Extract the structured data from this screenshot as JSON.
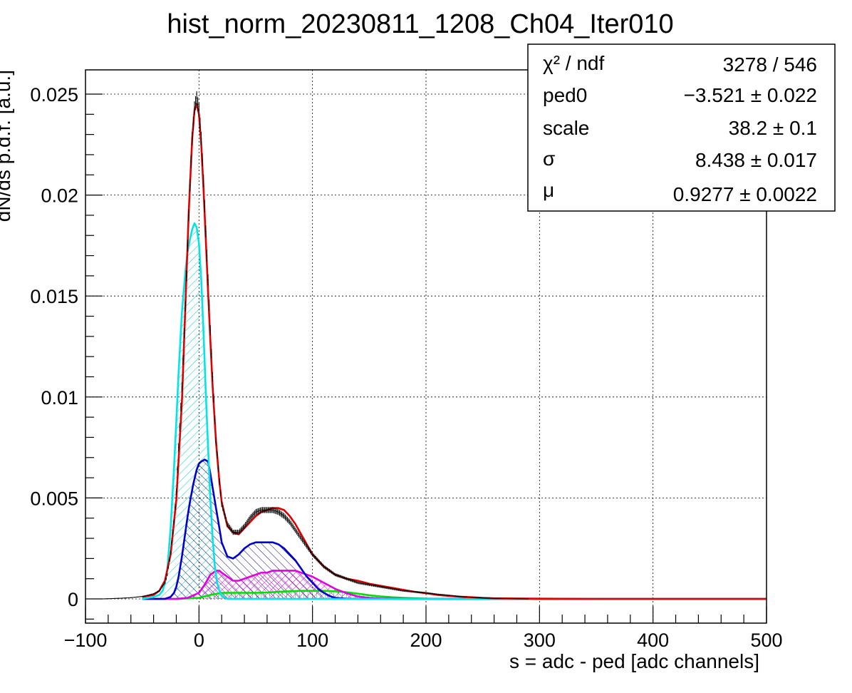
{
  "chart_data": {
    "type": "line",
    "title": "hist_norm_20230811_1208_Ch04_Iter010",
    "xlabel": "s = adc - ped [adc channels]",
    "ylabel": "dN/ds p.d.f. [a.u.]",
    "xlim": [
      -100,
      500
    ],
    "ylim": [
      -0.0012,
      0.0262
    ],
    "grid": true,
    "x_ticks": [
      -100,
      0,
      100,
      200,
      300,
      400,
      500
    ],
    "x_tick_labels": [
      "−100",
      "0",
      "100",
      "200",
      "300",
      "400",
      "500"
    ],
    "y_ticks": [
      0,
      0.005,
      0.01,
      0.015,
      0.02,
      0.025
    ],
    "y_tick_labels": [
      "0",
      "0.005",
      "0.01",
      "0.015",
      "0.02",
      "0.025"
    ],
    "colors": {
      "data": "#000000",
      "total_fit": "#e00000",
      "pedestal": "#00e5e5",
      "pe1": "#0000cc",
      "pe2": "#e000e0",
      "pe3": "#00dd00"
    },
    "series": [
      {
        "key": "data",
        "style": "histogram-points",
        "x": [
          -85,
          -70,
          -60,
          -50,
          -45,
          -40,
          -35,
          -30,
          -28,
          -25,
          -22,
          -20,
          -18,
          -15,
          -12,
          -10,
          -8,
          -6,
          -4,
          -2,
          0,
          2,
          4,
          6,
          8,
          10,
          12,
          15,
          18,
          20,
          25,
          30,
          35,
          40,
          45,
          50,
          55,
          60,
          65,
          70,
          75,
          80,
          85,
          90,
          95,
          100,
          110,
          120,
          130,
          140,
          150,
          160,
          170,
          180,
          190,
          200,
          210,
          220,
          230,
          240,
          250,
          260,
          270,
          280,
          290
        ],
        "y": [
          0,
          3e-05,
          6e-05,
          0.00012,
          0.00018,
          0.00025,
          0.0004,
          0.0008,
          0.0012,
          0.0023,
          0.0038,
          0.0053,
          0.0075,
          0.0105,
          0.0145,
          0.0175,
          0.0205,
          0.0228,
          0.0243,
          0.0248,
          0.0242,
          0.0228,
          0.0207,
          0.0182,
          0.0158,
          0.0133,
          0.011,
          0.0078,
          0.0058,
          0.0047,
          0.0037,
          0.0033,
          0.0033,
          0.0036,
          0.004,
          0.0043,
          0.0044,
          0.0044,
          0.0044,
          0.0043,
          0.0041,
          0.0038,
          0.0034,
          0.003,
          0.0026,
          0.0022,
          0.0016,
          0.0012,
          0.001,
          0.0008,
          0.0007,
          0.0006,
          0.0005,
          0.0004,
          0.00035,
          0.0003,
          0.00023,
          0.00018,
          0.00012,
          8e-05,
          5e-05,
          3e-05,
          2e-05,
          1e-05,
          0
        ]
      },
      {
        "key": "total_fit",
        "style": "line",
        "x": [
          -50,
          -40,
          -35,
          -30,
          -25,
          -20,
          -15,
          -12,
          -9,
          -6,
          -4,
          -2,
          0,
          2,
          4,
          6,
          8,
          10,
          12,
          15,
          18,
          20,
          25,
          30,
          35,
          40,
          45,
          50,
          55,
          60,
          65,
          70,
          75,
          80,
          85,
          90,
          95,
          100,
          110,
          120,
          130,
          140,
          150,
          160,
          170,
          180,
          190,
          200,
          210,
          220,
          230,
          240,
          250,
          260,
          280,
          300,
          350,
          400,
          450,
          500
        ],
        "y": [
          0.0001,
          0.0002,
          0.0004,
          0.0009,
          0.0022,
          0.0049,
          0.0098,
          0.0145,
          0.0192,
          0.0228,
          0.0242,
          0.0245,
          0.024,
          0.0225,
          0.0203,
          0.0178,
          0.0152,
          0.0128,
          0.0105,
          0.0078,
          0.0058,
          0.0048,
          0.0036,
          0.0033,
          0.0032,
          0.0035,
          0.0038,
          0.0041,
          0.0043,
          0.0044,
          0.0045,
          0.0045,
          0.0044,
          0.0041,
          0.0037,
          0.0032,
          0.0027,
          0.0022,
          0.0016,
          0.0012,
          0.001,
          0.0009,
          0.00075,
          0.00065,
          0.00055,
          0.00045,
          0.00035,
          0.00028,
          0.0002,
          0.00015,
          0.00011,
          8e-05,
          5e-05,
          3e-05,
          2e-05,
          1e-05,
          0,
          0,
          0,
          0
        ]
      },
      {
        "key": "pedestal",
        "style": "filled-line",
        "fill": "hatch-diag",
        "x": [
          -50,
          -40,
          -35,
          -32,
          -30,
          -28,
          -25,
          -22,
          -20,
          -18,
          -15,
          -12,
          -10,
          -8,
          -6,
          -4,
          -2,
          0,
          2,
          4,
          6,
          8,
          10,
          12,
          14,
          16,
          18,
          20,
          25,
          30,
          40,
          50,
          60,
          80,
          100,
          150,
          200,
          300,
          400,
          500
        ],
        "y": [
          0,
          0.0001,
          0.0002,
          0.0004,
          0.0008,
          0.0014,
          0.0035,
          0.0065,
          0.0088,
          0.0112,
          0.0142,
          0.0162,
          0.0172,
          0.0178,
          0.0183,
          0.0186,
          0.0184,
          0.0176,
          0.0158,
          0.0132,
          0.0102,
          0.0075,
          0.0049,
          0.003,
          0.0016,
          0.0008,
          0.0004,
          0.00015,
          0,
          0,
          0,
          0,
          0,
          0,
          0,
          0,
          0,
          0,
          0,
          0
        ]
      },
      {
        "key": "pe1",
        "style": "filled-line",
        "fill": "hatch-diag",
        "x": [
          -50,
          -30,
          -25,
          -22,
          -20,
          -18,
          -15,
          -12,
          -10,
          -8,
          -5,
          -2,
          0,
          2,
          5,
          8,
          10,
          12,
          15,
          18,
          20,
          25,
          30,
          35,
          40,
          45,
          50,
          55,
          60,
          65,
          70,
          75,
          80,
          85,
          90,
          95,
          100,
          105,
          110,
          115,
          120,
          130,
          140,
          160,
          200,
          300,
          400,
          500
        ],
        "y": [
          0,
          0,
          0.0001,
          0.0003,
          0.0006,
          0.0011,
          0.0021,
          0.0033,
          0.0041,
          0.0048,
          0.0057,
          0.0064,
          0.0067,
          0.0068,
          0.0069,
          0.0068,
          0.0062,
          0.0055,
          0.0045,
          0.0035,
          0.0028,
          0.0021,
          0.002,
          0.0022,
          0.0025,
          0.0027,
          0.0028,
          0.0028,
          0.0028,
          0.0028,
          0.0027,
          0.0025,
          0.0022,
          0.0019,
          0.0015,
          0.0011,
          0.0008,
          0.0005,
          0.0003,
          0.00015,
          5e-05,
          1e-05,
          0,
          0,
          0,
          0,
          0,
          0
        ]
      },
      {
        "key": "pe2",
        "style": "filled-line",
        "fill": "hatch-cross",
        "x": [
          -50,
          -20,
          -10,
          0,
          5,
          8,
          10,
          15,
          18,
          20,
          25,
          30,
          35,
          40,
          45,
          50,
          55,
          60,
          65,
          70,
          75,
          80,
          85,
          90,
          95,
          100,
          110,
          120,
          130,
          140,
          150,
          160,
          170,
          180,
          200,
          250,
          300,
          400,
          500
        ],
        "y": [
          0,
          0,
          5e-05,
          0.0003,
          0.0007,
          0.001,
          0.0012,
          0.0014,
          0.0014,
          0.0013,
          0.0011,
          0.0009,
          0.0009,
          0.001,
          0.0011,
          0.0012,
          0.0013,
          0.0013,
          0.0014,
          0.0014,
          0.0014,
          0.0014,
          0.0014,
          0.0013,
          0.0012,
          0.0011,
          0.0008,
          0.0005,
          0.00028,
          0.00012,
          5e-05,
          2e-05,
          1e-05,
          0,
          0,
          0,
          0,
          0,
          0
        ]
      },
      {
        "key": "pe3",
        "style": "filled-line",
        "fill": "hatch-vert",
        "x": [
          -50,
          -20,
          0,
          10,
          20,
          30,
          40,
          50,
          60,
          70,
          80,
          90,
          100,
          110,
          120,
          130,
          140,
          150,
          160,
          170,
          180,
          190,
          200,
          220,
          250,
          300,
          400,
          500
        ],
        "y": [
          0,
          0,
          5e-05,
          0.0002,
          0.0003,
          0.0003,
          0.0003,
          0.0003,
          0.00032,
          0.00035,
          0.00038,
          0.0004,
          0.0004,
          0.0004,
          0.00038,
          0.00033,
          0.00026,
          0.00018,
          0.00012,
          8e-05,
          5e-05,
          3e-05,
          1e-05,
          0,
          0,
          0,
          0,
          0
        ]
      }
    ],
    "stats_box": {
      "rows": [
        {
          "label": "χ² / ndf",
          "value": "3278 / 546"
        },
        {
          "label": "ped0",
          "value": "−3.521 ± 0.022"
        },
        {
          "label": "scale",
          "value": "38.2 ± 0.1"
        },
        {
          "label": "σ",
          "value": "8.438 ± 0.017"
        },
        {
          "label": "μ",
          "value": "0.9277 ± 0.0022"
        }
      ]
    }
  }
}
